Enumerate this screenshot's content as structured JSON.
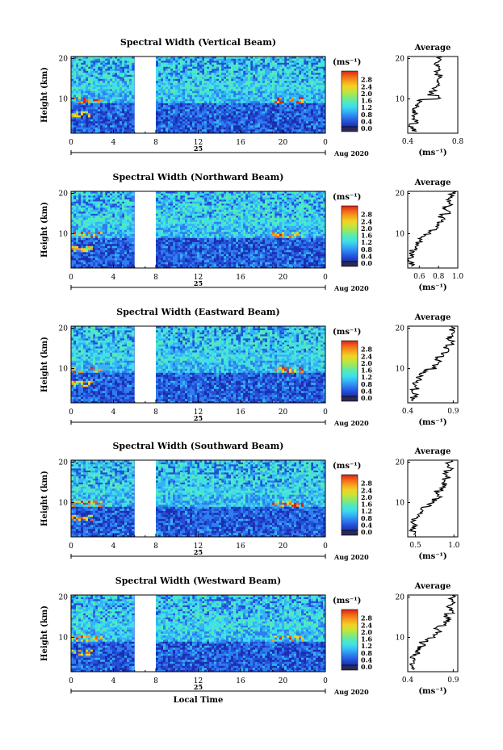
{
  "figure": {
    "date_label": "Aug 2020",
    "day_label": "25",
    "xlabel": "Local Time",
    "ylabel": "Height (km)",
    "cbar_unit": "(ms⁻¹)",
    "avg_title": "Average",
    "avg_xlabel": "(ms⁻¹)"
  },
  "chart_data": [
    {
      "type": "heatmap",
      "title": "Spectral Width (Vertical Beam)",
      "x_ticks": [
        "0",
        "4",
        "8",
        "12",
        "16",
        "20",
        "0"
      ],
      "x_range": [
        0,
        24
      ],
      "y_ticks": [
        "10",
        "20"
      ],
      "y_range": [
        1.5,
        20.5
      ],
      "gap_hours": [
        6,
        8
      ],
      "colorbar": {
        "ticks": [
          "0.0",
          "0.4",
          "0.8",
          "1.2",
          "1.6",
          "2.0",
          "2.4",
          "2.8"
        ],
        "range": [
          0,
          3.2
        ]
      },
      "average": {
        "x_ticks": [
          "0.4",
          "0.8"
        ],
        "x_range": [
          0.4,
          0.8
        ],
        "heights": [
          2,
          3,
          4,
          5,
          6,
          7,
          8,
          9,
          10,
          11,
          12,
          13,
          14,
          15,
          16,
          17,
          18,
          19,
          20
        ],
        "values": [
          0.45,
          0.43,
          0.47,
          0.44,
          0.46,
          0.45,
          0.47,
          0.5,
          0.66,
          0.58,
          0.62,
          0.64,
          0.63,
          0.66,
          0.62,
          0.67,
          0.63,
          0.65,
          0.66
        ]
      }
    },
    {
      "type": "heatmap",
      "title": "Spectral Width (Northward Beam)",
      "x_ticks": [
        "0",
        "4",
        "8",
        "12",
        "16",
        "20",
        "0"
      ],
      "x_range": [
        0,
        24
      ],
      "y_ticks": [
        "10",
        "20"
      ],
      "y_range": [
        1.5,
        20.5
      ],
      "gap_hours": [
        6,
        8
      ],
      "colorbar": {
        "ticks": [
          "0.0",
          "0.4",
          "0.8",
          "1.2",
          "1.6",
          "2.0",
          "2.4",
          "2.8"
        ],
        "range": [
          0,
          3.2
        ]
      },
      "average": {
        "x_ticks": [
          "0.6",
          "0.8",
          "1.0"
        ],
        "x_range": [
          0.48,
          1.0
        ],
        "heights": [
          2,
          3,
          4,
          5,
          6,
          7,
          8,
          9,
          10,
          11,
          12,
          13,
          14,
          15,
          16,
          17,
          18,
          19,
          20
        ],
        "values": [
          0.52,
          0.5,
          0.54,
          0.52,
          0.55,
          0.58,
          0.6,
          0.65,
          0.72,
          0.8,
          0.78,
          0.84,
          0.82,
          0.9,
          0.88,
          0.92,
          0.9,
          0.94,
          0.96
        ]
      }
    },
    {
      "type": "heatmap",
      "title": "Spectral Width (Eastward Beam)",
      "x_ticks": [
        "0",
        "4",
        "8",
        "12",
        "16",
        "20",
        "0"
      ],
      "x_range": [
        0,
        24
      ],
      "y_ticks": [
        "10",
        "20"
      ],
      "y_range": [
        1.5,
        20.5
      ],
      "gap_hours": [
        6,
        8
      ],
      "colorbar": {
        "ticks": [
          "0.0",
          "0.4",
          "0.8",
          "1.2",
          "1.6",
          "2.0",
          "2.4",
          "2.8"
        ],
        "range": [
          0,
          3.2
        ]
      },
      "average": {
        "x_ticks": [
          "0.4",
          "0.9"
        ],
        "x_range": [
          0.4,
          0.95
        ],
        "heights": [
          2,
          3,
          4,
          5,
          6,
          7,
          8,
          9,
          10,
          11,
          12,
          13,
          14,
          15,
          16,
          17,
          18,
          19,
          20
        ],
        "values": [
          0.45,
          0.48,
          0.46,
          0.5,
          0.48,
          0.52,
          0.55,
          0.6,
          0.7,
          0.75,
          0.72,
          0.8,
          0.85,
          0.82,
          0.88,
          0.86,
          0.9,
          0.88,
          0.91
        ]
      }
    },
    {
      "type": "heatmap",
      "title": "Spectral Width (Southward Beam)",
      "x_ticks": [
        "0",
        "4",
        "8",
        "12",
        "16",
        "20",
        "0"
      ],
      "x_range": [
        0,
        24
      ],
      "y_ticks": [
        "10",
        "20"
      ],
      "y_range": [
        1.5,
        20.5
      ],
      "gap_hours": [
        6,
        8
      ],
      "colorbar": {
        "ticks": [
          "0.0",
          "0.4",
          "0.8",
          "1.2",
          "1.6",
          "2.0",
          "2.4",
          "2.8"
        ],
        "range": [
          0,
          3.2
        ]
      },
      "average": {
        "x_ticks": [
          "0.5",
          "1.0"
        ],
        "x_range": [
          0.4,
          1.05
        ],
        "heights": [
          2,
          3,
          4,
          5,
          6,
          7,
          8,
          9,
          10,
          11,
          12,
          13,
          14,
          15,
          16,
          17,
          18,
          19,
          20
        ],
        "values": [
          0.48,
          0.46,
          0.5,
          0.48,
          0.52,
          0.56,
          0.6,
          0.68,
          0.75,
          0.8,
          0.78,
          0.85,
          0.88,
          0.86,
          0.92,
          0.9,
          0.95,
          0.93,
          0.97
        ]
      }
    },
    {
      "type": "heatmap",
      "title": "Spectral Width (Westward Beam)",
      "x_ticks": [
        "0",
        "4",
        "8",
        "12",
        "16",
        "20",
        "0"
      ],
      "x_range": [
        0,
        24
      ],
      "y_ticks": [
        "10",
        "20"
      ],
      "y_range": [
        1.5,
        20.5
      ],
      "gap_hours": [
        6,
        8
      ],
      "colorbar": {
        "ticks": [
          "0.0",
          "0.4",
          "0.8",
          "1.2",
          "1.6",
          "2.0",
          "2.4",
          "2.8"
        ],
        "range": [
          0,
          3.2
        ]
      },
      "average": {
        "x_ticks": [
          "0.4",
          "0.9"
        ],
        "x_range": [
          0.4,
          0.95
        ],
        "heights": [
          2,
          3,
          4,
          5,
          6,
          7,
          8,
          9,
          10,
          11,
          12,
          13,
          14,
          15,
          16,
          17,
          18,
          19,
          20
        ],
        "values": [
          0.46,
          0.44,
          0.48,
          0.46,
          0.5,
          0.53,
          0.56,
          0.62,
          0.7,
          0.74,
          0.72,
          0.8,
          0.84,
          0.82,
          0.88,
          0.86,
          0.9,
          0.88,
          0.92
        ]
      }
    }
  ]
}
